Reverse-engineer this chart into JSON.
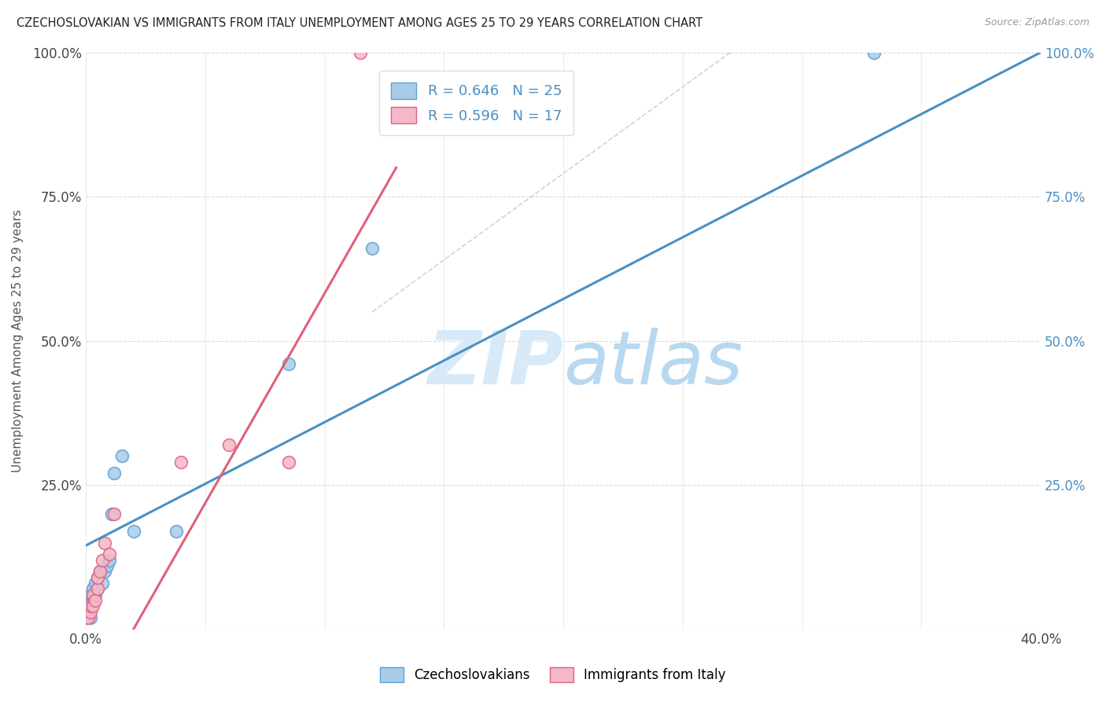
{
  "title": "CZECHOSLOVAKIAN VS IMMIGRANTS FROM ITALY UNEMPLOYMENT AMONG AGES 25 TO 29 YEARS CORRELATION CHART",
  "source": "Source: ZipAtlas.com",
  "ylabel": "Unemployment Among Ages 25 to 29 years",
  "xlim": [
    0.0,
    0.4
  ],
  "ylim": [
    0.0,
    1.0
  ],
  "R_czechoslovakians": 0.646,
  "N_czechoslovakians": 25,
  "R_italy": 0.596,
  "N_italy": 17,
  "color_czechoslovakians_fill": "#a8cce8",
  "color_czechoslovakians_edge": "#5a9fd4",
  "color_italy_fill": "#f5b8c8",
  "color_italy_edge": "#e06080",
  "color_line_czech": "#4a90c4",
  "color_line_italy": "#e0607a",
  "color_ref_line": "#c8c8c8",
  "watermark_color": "#d8eaf8",
  "background_color": "#ffffff",
  "czech_x": [
    0.0005,
    0.001,
    0.001,
    0.002,
    0.002,
    0.002,
    0.003,
    0.003,
    0.004,
    0.004,
    0.005,
    0.005,
    0.006,
    0.007,
    0.008,
    0.009,
    0.01,
    0.011,
    0.012,
    0.015,
    0.02,
    0.038,
    0.085,
    0.12,
    0.33
  ],
  "czech_y": [
    0.02,
    0.03,
    0.04,
    0.02,
    0.05,
    0.06,
    0.05,
    0.07,
    0.08,
    0.06,
    0.07,
    0.09,
    0.1,
    0.08,
    0.1,
    0.11,
    0.12,
    0.2,
    0.27,
    0.3,
    0.17,
    0.17,
    0.46,
    0.66,
    1.0
  ],
  "italy_x": [
    0.001,
    0.002,
    0.002,
    0.003,
    0.003,
    0.004,
    0.005,
    0.005,
    0.006,
    0.007,
    0.008,
    0.01,
    0.012,
    0.04,
    0.06,
    0.085,
    0.115
  ],
  "italy_y": [
    0.02,
    0.03,
    0.04,
    0.04,
    0.06,
    0.05,
    0.07,
    0.09,
    0.1,
    0.12,
    0.15,
    0.13,
    0.2,
    0.29,
    0.32,
    0.29,
    1.0
  ],
  "czech_line_x0": 0.0,
  "czech_line_y0": 0.145,
  "czech_line_x1": 0.4,
  "czech_line_y1": 1.0,
  "italy_line_x0": 0.02,
  "italy_line_y0": 0.0,
  "italy_line_x1": 0.13,
  "italy_line_y1": 0.8,
  "ref_line_x0": 0.12,
  "ref_line_y0": 0.55,
  "ref_line_x1": 0.27,
  "ref_line_y1": 1.0
}
